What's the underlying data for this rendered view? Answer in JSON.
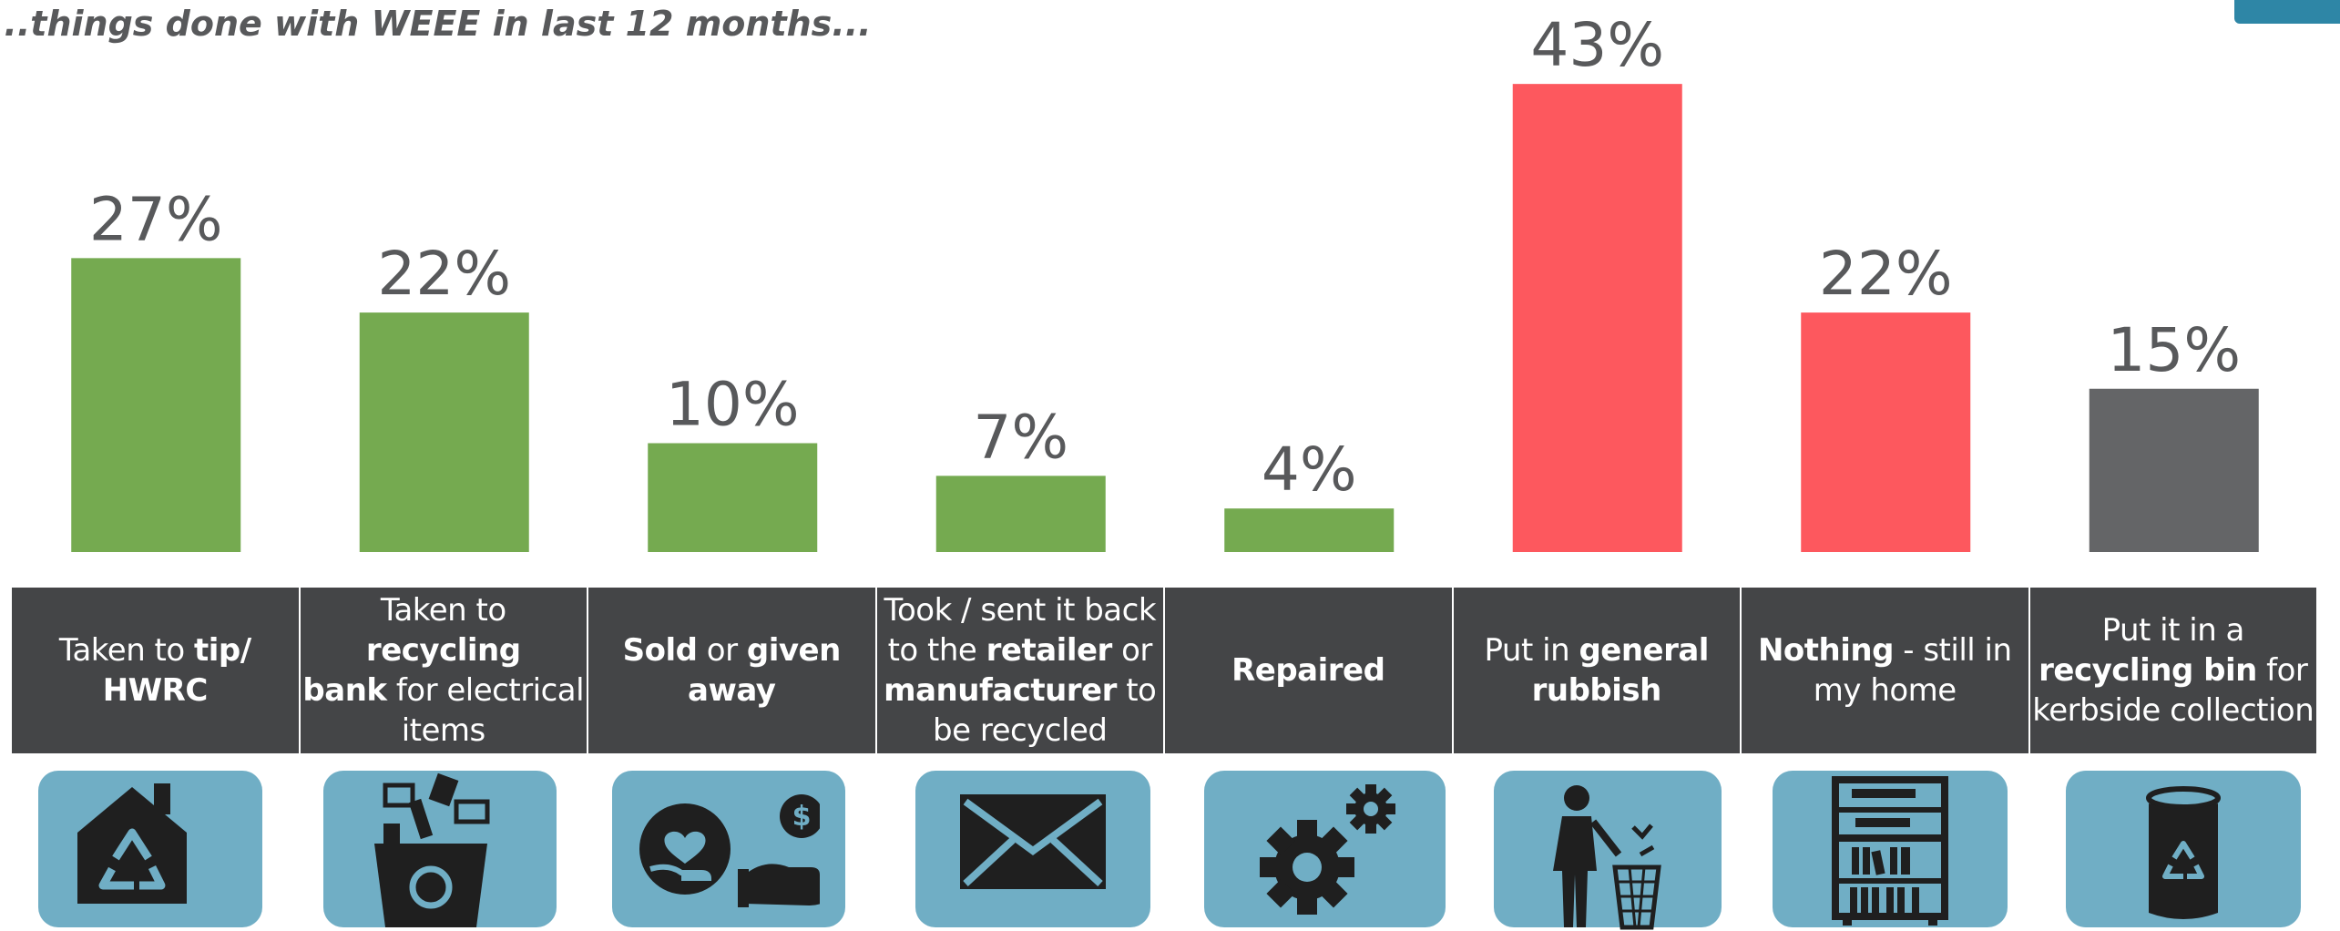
{
  "title": "...things done with WEEE in last 12 months...",
  "colors": {
    "positive": "#75aa50",
    "negative": "#fd585e",
    "neutral": "#646567",
    "label_cell": "#444547",
    "icon_tile": "#70aec5",
    "icon_fill": "#1f1f1f",
    "value_text": "#58595b"
  },
  "chart_data": {
    "type": "bar",
    "title": "...things done with WEEE in last 12 months...",
    "xlabel": "",
    "ylabel": "",
    "ylim": [
      0,
      45
    ],
    "grid": false,
    "categories": [
      "Taken to tip/ HWRC",
      "Taken to recycling bank for electrical items",
      "Sold or given away",
      "Took / sent it back to the retailer or manufacturer to be recycled",
      "Repaired",
      "Put in general rubbish",
      "Nothing - still in my home",
      "Put it in a recycling bin for kerbside collection"
    ],
    "values": [
      27,
      22,
      10,
      7,
      4,
      43,
      22,
      15
    ],
    "value_labels": [
      "27%",
      "22%",
      "10%",
      "7%",
      "4%",
      "43%",
      "22%",
      "15%"
    ],
    "bar_colors": [
      "#75aa50",
      "#75aa50",
      "#75aa50",
      "#75aa50",
      "#75aa50",
      "#fd585e",
      "#fd585e",
      "#646567"
    ]
  },
  "categories": [
    {
      "parts": [
        {
          "t": "Taken to "
        },
        {
          "t": "tip/",
          "b": true
        },
        {
          "br": true
        },
        {
          "t": "HWRC",
          "b": true
        }
      ],
      "icon": "recycling-house-icon"
    },
    {
      "parts": [
        {
          "t": "Taken to "
        },
        {
          "t": "recycling",
          "b": true
        },
        {
          "br": true
        },
        {
          "t": "bank",
          "b": true
        },
        {
          "t": " for electrical"
        },
        {
          "br": true
        },
        {
          "t": "items"
        }
      ],
      "icon": "electronics-recycling-box-icon"
    },
    {
      "parts": [
        {
          "t": "Sold",
          "b": true
        },
        {
          "t": " or "
        },
        {
          "t": "given",
          "b": true
        },
        {
          "br": true
        },
        {
          "t": "away",
          "b": true
        }
      ],
      "icon": "hand-heart-money-icon"
    },
    {
      "parts": [
        {
          "t": "Took / sent it back"
        },
        {
          "br": true
        },
        {
          "t": "to the "
        },
        {
          "t": "retailer",
          "b": true
        },
        {
          "t": " or"
        },
        {
          "br": true
        },
        {
          "t": "manufacturer",
          "b": true
        },
        {
          "t": " to"
        },
        {
          "br": true
        },
        {
          "t": "be recycled"
        }
      ],
      "icon": "envelope-icon"
    },
    {
      "parts": [
        {
          "t": "Repaired",
          "b": true
        }
      ],
      "icon": "gears-icon"
    },
    {
      "parts": [
        {
          "t": "Put in "
        },
        {
          "t": "general",
          "b": true
        },
        {
          "br": true
        },
        {
          "t": "rubbish",
          "b": true
        }
      ],
      "icon": "person-trash-bin-icon"
    },
    {
      "parts": [
        {
          "t": "Nothing",
          "b": true
        },
        {
          "t": " - still in"
        },
        {
          "br": true
        },
        {
          "t": "my home"
        }
      ],
      "icon": "bookshelf-icon"
    },
    {
      "parts": [
        {
          "t": "Put it in a"
        },
        {
          "br": true
        },
        {
          "t": "recycling bin",
          "b": true
        },
        {
          "t": " for"
        },
        {
          "br": true
        },
        {
          "t": "kerbside collection"
        }
      ],
      "icon": "recycling-bin-icon"
    }
  ]
}
